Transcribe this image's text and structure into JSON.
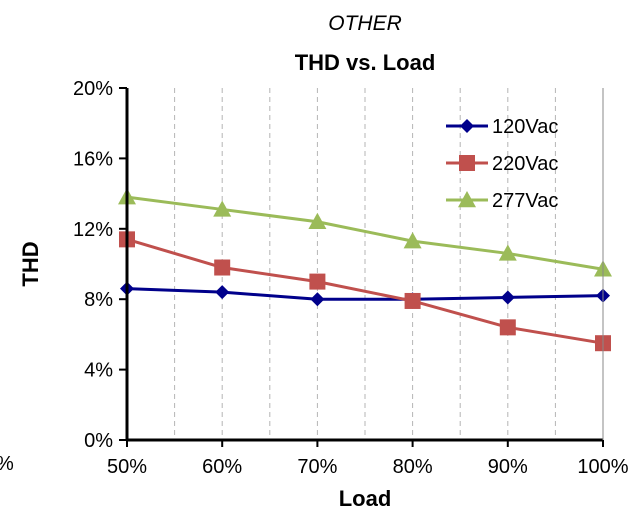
{
  "chart_data": {
    "type": "line",
    "supertitle": "OTHER",
    "title": "THD vs. Load",
    "xlabel": "Load",
    "ylabel": "THD",
    "categories": [
      "50%",
      "60%",
      "70%",
      "80%",
      "90%",
      "100%"
    ],
    "x": [
      50,
      60,
      70,
      80,
      90,
      100
    ],
    "ylim": [
      0,
      20
    ],
    "yticks": [
      0,
      4,
      8,
      12,
      16,
      20
    ],
    "ytick_labels": [
      "0%",
      "4%",
      "8%",
      "12%",
      "16%",
      "20%"
    ],
    "clipped_left_label": "%",
    "legend_position": "top-right",
    "grid": "vertical-dashed",
    "series": [
      {
        "name": "120Vac",
        "color": "#00008B",
        "marker": "diamond",
        "values": [
          8.6,
          8.4,
          8.0,
          8.0,
          8.1,
          8.2
        ]
      },
      {
        "name": "220Vac",
        "color": "#C0504D",
        "marker": "square",
        "values": [
          11.4,
          9.8,
          9.0,
          7.9,
          6.4,
          5.5
        ]
      },
      {
        "name": "277Vac",
        "color": "#9BBB59",
        "marker": "triangle",
        "values": [
          13.8,
          13.1,
          12.4,
          11.3,
          10.6,
          9.7
        ]
      }
    ]
  }
}
